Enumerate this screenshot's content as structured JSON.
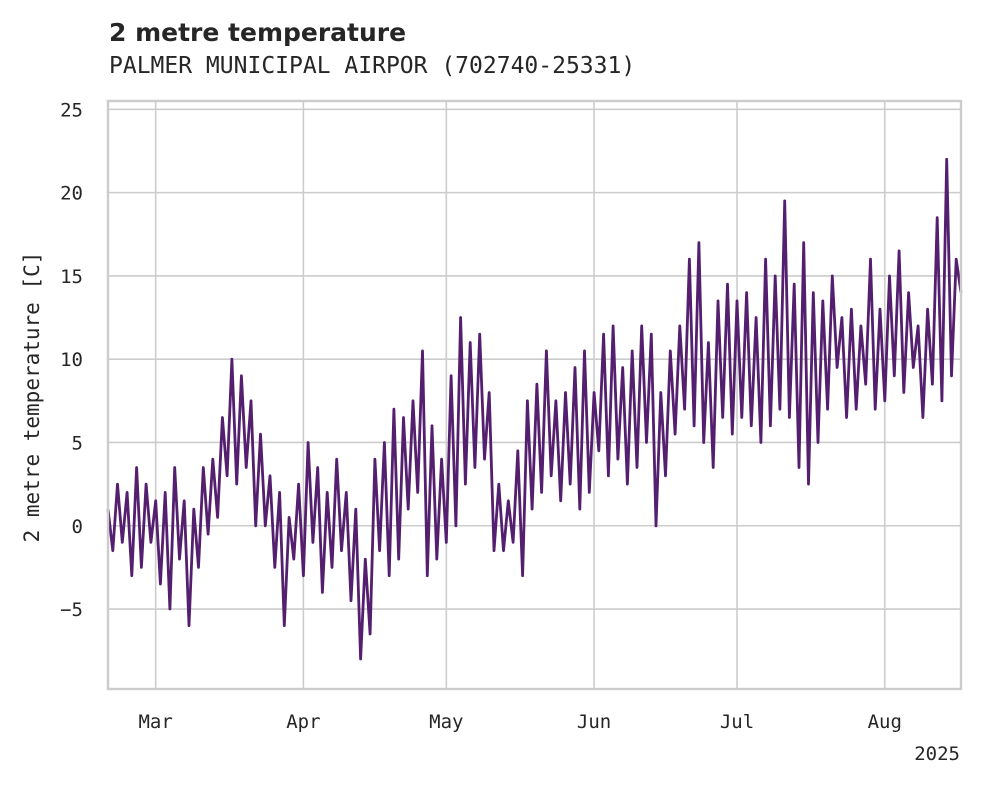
{
  "chart_data": {
    "type": "line",
    "title": "2 metre temperature",
    "subtitle": "PALMER MUNICIPAL AIRPOR (702740-25331)",
    "ylabel": "2 metre temperature [C]",
    "xlabel": "",
    "year_label": "2025",
    "x_range": [
      "2025-02-19",
      "2025-08-17"
    ],
    "ylim": [
      -9.8,
      25.5
    ],
    "x_ticks": [
      {
        "date": "2025-03-01",
        "label": "Mar"
      },
      {
        "date": "2025-04-01",
        "label": "Apr"
      },
      {
        "date": "2025-05-01",
        "label": "May"
      },
      {
        "date": "2025-06-01",
        "label": "Jun"
      },
      {
        "date": "2025-07-01",
        "label": "Jul"
      },
      {
        "date": "2025-08-01",
        "label": "Aug"
      }
    ],
    "y_ticks": [
      {
        "value": -5,
        "label": "−5"
      },
      {
        "value": 0,
        "label": "0"
      },
      {
        "value": 5,
        "label": "5"
      },
      {
        "value": 10,
        "label": "10"
      },
      {
        "value": 15,
        "label": "15"
      },
      {
        "value": 20,
        "label": "20"
      },
      {
        "value": 25,
        "label": "25"
      }
    ],
    "grid": true,
    "legend": "none",
    "series": [
      {
        "color": "#541f6e",
        "points": [
          [
            "2025-02-19",
            1.0
          ],
          [
            "2025-02-20",
            -1.5
          ],
          [
            "2025-02-21",
            2.5
          ],
          [
            "2025-02-22",
            -1.0
          ],
          [
            "2025-02-23",
            2.0
          ],
          [
            "2025-02-24",
            -3.0
          ],
          [
            "2025-02-25",
            3.5
          ],
          [
            "2025-02-26",
            -2.5
          ],
          [
            "2025-02-27",
            2.5
          ],
          [
            "2025-02-28",
            -1.0
          ],
          [
            "2025-03-01",
            1.5
          ],
          [
            "2025-03-02",
            -3.5
          ],
          [
            "2025-03-03",
            2.0
          ],
          [
            "2025-03-04",
            -5.0
          ],
          [
            "2025-03-05",
            3.5
          ],
          [
            "2025-03-06",
            -2.0
          ],
          [
            "2025-03-07",
            1.5
          ],
          [
            "2025-03-08",
            -6.0
          ],
          [
            "2025-03-09",
            1.0
          ],
          [
            "2025-03-10",
            -2.5
          ],
          [
            "2025-03-11",
            3.5
          ],
          [
            "2025-03-12",
            -0.5
          ],
          [
            "2025-03-13",
            4.0
          ],
          [
            "2025-03-14",
            0.5
          ],
          [
            "2025-03-15",
            6.5
          ],
          [
            "2025-03-16",
            3.0
          ],
          [
            "2025-03-17",
            10.0
          ],
          [
            "2025-03-18",
            2.5
          ],
          [
            "2025-03-19",
            9.0
          ],
          [
            "2025-03-20",
            3.5
          ],
          [
            "2025-03-21",
            7.5
          ],
          [
            "2025-03-22",
            0.0
          ],
          [
            "2025-03-23",
            5.5
          ],
          [
            "2025-03-24",
            0.0
          ],
          [
            "2025-03-25",
            3.0
          ],
          [
            "2025-03-26",
            -2.5
          ],
          [
            "2025-03-27",
            2.0
          ],
          [
            "2025-03-28",
            -6.0
          ],
          [
            "2025-03-29",
            0.5
          ],
          [
            "2025-03-30",
            -2.0
          ],
          [
            "2025-03-31",
            2.5
          ],
          [
            "2025-04-01",
            -3.0
          ],
          [
            "2025-04-02",
            5.0
          ],
          [
            "2025-04-03",
            -1.0
          ],
          [
            "2025-04-04",
            3.5
          ],
          [
            "2025-04-05",
            -4.0
          ],
          [
            "2025-04-06",
            2.0
          ],
          [
            "2025-04-07",
            -2.5
          ],
          [
            "2025-04-08",
            4.0
          ],
          [
            "2025-04-09",
            -1.5
          ],
          [
            "2025-04-10",
            2.0
          ],
          [
            "2025-04-11",
            -4.5
          ],
          [
            "2025-04-12",
            1.0
          ],
          [
            "2025-04-13",
            -8.0
          ],
          [
            "2025-04-14",
            -2.0
          ],
          [
            "2025-04-15",
            -6.5
          ],
          [
            "2025-04-16",
            4.0
          ],
          [
            "2025-04-17",
            -1.5
          ],
          [
            "2025-04-18",
            5.0
          ],
          [
            "2025-04-19",
            -3.0
          ],
          [
            "2025-04-20",
            7.0
          ],
          [
            "2025-04-21",
            -2.0
          ],
          [
            "2025-04-22",
            6.5
          ],
          [
            "2025-04-23",
            1.0
          ],
          [
            "2025-04-24",
            7.5
          ],
          [
            "2025-04-25",
            2.0
          ],
          [
            "2025-04-26",
            10.5
          ],
          [
            "2025-04-27",
            -3.0
          ],
          [
            "2025-04-28",
            6.0
          ],
          [
            "2025-04-29",
            -2.0
          ],
          [
            "2025-04-30",
            4.0
          ],
          [
            "2025-05-01",
            -1.0
          ],
          [
            "2025-05-02",
            9.0
          ],
          [
            "2025-05-03",
            0.0
          ],
          [
            "2025-05-04",
            12.5
          ],
          [
            "2025-05-05",
            2.5
          ],
          [
            "2025-05-06",
            11.0
          ],
          [
            "2025-05-07",
            3.5
          ],
          [
            "2025-05-08",
            11.5
          ],
          [
            "2025-05-09",
            4.0
          ],
          [
            "2025-05-10",
            8.0
          ],
          [
            "2025-05-11",
            -1.5
          ],
          [
            "2025-05-12",
            2.5
          ],
          [
            "2025-05-13",
            -1.5
          ],
          [
            "2025-05-14",
            1.5
          ],
          [
            "2025-05-15",
            -1.0
          ],
          [
            "2025-05-16",
            4.5
          ],
          [
            "2025-05-17",
            -3.0
          ],
          [
            "2025-05-18",
            7.5
          ],
          [
            "2025-05-19",
            1.0
          ],
          [
            "2025-05-20",
            8.5
          ],
          [
            "2025-05-21",
            2.0
          ],
          [
            "2025-05-22",
            10.5
          ],
          [
            "2025-05-23",
            3.0
          ],
          [
            "2025-05-24",
            7.5
          ],
          [
            "2025-05-25",
            1.5
          ],
          [
            "2025-05-26",
            8.0
          ],
          [
            "2025-05-27",
            2.5
          ],
          [
            "2025-05-28",
            9.5
          ],
          [
            "2025-05-29",
            1.0
          ],
          [
            "2025-05-30",
            10.5
          ],
          [
            "2025-05-31",
            2.0
          ],
          [
            "2025-06-01",
            8.0
          ],
          [
            "2025-06-02",
            4.5
          ],
          [
            "2025-06-03",
            11.5
          ],
          [
            "2025-06-04",
            3.0
          ],
          [
            "2025-06-05",
            12.0
          ],
          [
            "2025-06-06",
            4.0
          ],
          [
            "2025-06-07",
            9.5
          ],
          [
            "2025-06-08",
            2.5
          ],
          [
            "2025-06-09",
            10.5
          ],
          [
            "2025-06-10",
            3.5
          ],
          [
            "2025-06-11",
            12.0
          ],
          [
            "2025-06-12",
            5.0
          ],
          [
            "2025-06-13",
            11.5
          ],
          [
            "2025-06-14",
            0.0
          ],
          [
            "2025-06-15",
            8.0
          ],
          [
            "2025-06-16",
            3.0
          ],
          [
            "2025-06-17",
            10.5
          ],
          [
            "2025-06-18",
            5.5
          ],
          [
            "2025-06-19",
            12.0
          ],
          [
            "2025-06-20",
            7.0
          ],
          [
            "2025-06-21",
            16.0
          ],
          [
            "2025-06-22",
            6.0
          ],
          [
            "2025-06-23",
            17.0
          ],
          [
            "2025-06-24",
            5.0
          ],
          [
            "2025-06-25",
            11.0
          ],
          [
            "2025-06-26",
            3.5
          ],
          [
            "2025-06-27",
            13.5
          ],
          [
            "2025-06-28",
            6.5
          ],
          [
            "2025-06-29",
            14.5
          ],
          [
            "2025-06-30",
            5.5
          ],
          [
            "2025-07-01",
            13.5
          ],
          [
            "2025-07-02",
            6.5
          ],
          [
            "2025-07-03",
            14.0
          ],
          [
            "2025-07-04",
            6.0
          ],
          [
            "2025-07-05",
            12.5
          ],
          [
            "2025-07-06",
            5.0
          ],
          [
            "2025-07-07",
            16.0
          ],
          [
            "2025-07-08",
            6.0
          ],
          [
            "2025-07-09",
            15.0
          ],
          [
            "2025-07-10",
            7.0
          ],
          [
            "2025-07-11",
            19.5
          ],
          [
            "2025-07-12",
            6.5
          ],
          [
            "2025-07-13",
            14.5
          ],
          [
            "2025-07-14",
            3.5
          ],
          [
            "2025-07-15",
            17.0
          ],
          [
            "2025-07-16",
            2.5
          ],
          [
            "2025-07-17",
            14.0
          ],
          [
            "2025-07-18",
            5.0
          ],
          [
            "2025-07-19",
            13.5
          ],
          [
            "2025-07-20",
            7.0
          ],
          [
            "2025-07-21",
            15.0
          ],
          [
            "2025-07-22",
            9.5
          ],
          [
            "2025-07-23",
            12.5
          ],
          [
            "2025-07-24",
            6.5
          ],
          [
            "2025-07-25",
            13.0
          ],
          [
            "2025-07-26",
            7.0
          ],
          [
            "2025-07-27",
            12.0
          ],
          [
            "2025-07-28",
            8.5
          ],
          [
            "2025-07-29",
            16.0
          ],
          [
            "2025-07-30",
            7.0
          ],
          [
            "2025-07-31",
            13.0
          ],
          [
            "2025-08-01",
            7.5
          ],
          [
            "2025-08-02",
            15.0
          ],
          [
            "2025-08-03",
            9.0
          ],
          [
            "2025-08-04",
            16.5
          ],
          [
            "2025-08-05",
            8.0
          ],
          [
            "2025-08-06",
            14.0
          ],
          [
            "2025-08-07",
            9.5
          ],
          [
            "2025-08-08",
            12.0
          ],
          [
            "2025-08-09",
            6.5
          ],
          [
            "2025-08-10",
            13.0
          ],
          [
            "2025-08-11",
            8.5
          ],
          [
            "2025-08-12",
            18.5
          ],
          [
            "2025-08-13",
            7.5
          ],
          [
            "2025-08-14",
            22.0
          ],
          [
            "2025-08-15",
            9.0
          ],
          [
            "2025-08-16",
            16.0
          ],
          [
            "2025-08-17",
            14.0
          ]
        ]
      }
    ]
  }
}
